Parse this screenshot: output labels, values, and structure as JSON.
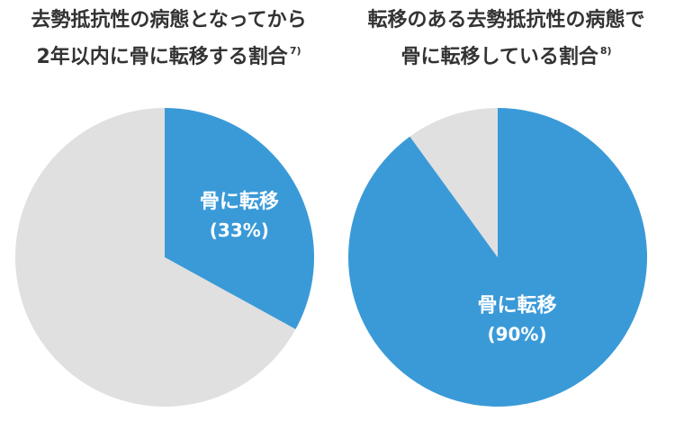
{
  "chart_data": [
    {
      "type": "pie",
      "title_line1": "去勢抵抗性の病態となってから",
      "title_line2": "2年以内に骨に転移する割合",
      "title_ref": "7)",
      "slices": [
        {
          "label": "骨に転移",
          "value": 33,
          "value_label": "(33%)",
          "color": "#3a9ad8"
        },
        {
          "label": "",
          "value": 67,
          "color": "#e0e0e0"
        }
      ]
    },
    {
      "type": "pie",
      "title_line1": "転移のある去勢抵抗性の病態で",
      "title_line2": "骨に転移している割合",
      "title_ref": "8)",
      "slices": [
        {
          "label": "骨に転移",
          "value": 90,
          "value_label": "(90%)",
          "color": "#3a9ad8"
        },
        {
          "label": "",
          "value": 10,
          "color": "#e0e0e0"
        }
      ]
    }
  ]
}
